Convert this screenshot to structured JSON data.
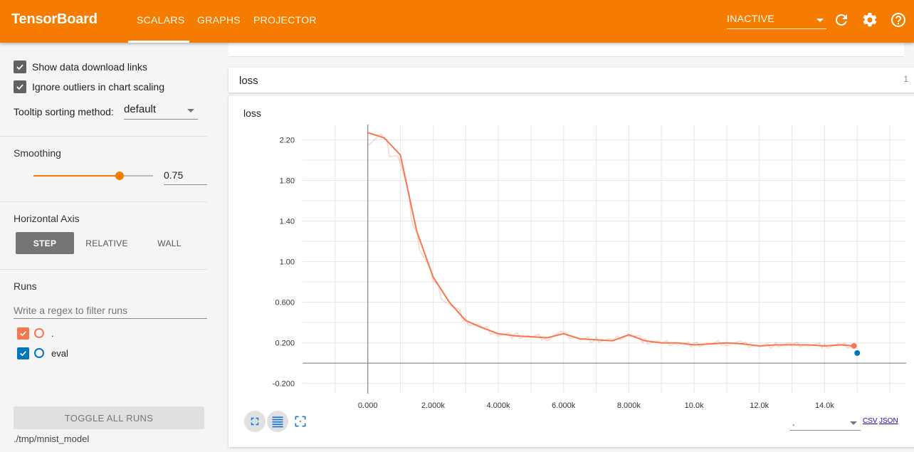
{
  "app": {
    "title": "TensorBoard"
  },
  "tabs": [
    {
      "label": "SCALARS",
      "active": true
    },
    {
      "label": "GRAPHS",
      "active": false
    },
    {
      "label": "PROJECTOR",
      "active": false
    }
  ],
  "header": {
    "dashboard_select": "INACTIVE",
    "icons": [
      "refresh-icon",
      "settings-icon",
      "help-icon"
    ]
  },
  "sidebar": {
    "show_download_links": {
      "label": "Show data download links",
      "checked": true
    },
    "ignore_outliers": {
      "label": "Ignore outliers in chart scaling",
      "checked": true
    },
    "tooltip_sorting": {
      "label": "Tooltip sorting method:",
      "value": "default"
    },
    "smoothing": {
      "title": "Smoothing",
      "value": "0.75",
      "fraction": 0.75
    },
    "horizontal_axis": {
      "title": "Horizontal Axis",
      "options": [
        "STEP",
        "RELATIVE",
        "WALL"
      ],
      "selected": "STEP"
    },
    "runs": {
      "title": "Runs",
      "filter_placeholder": "Write a regex to filter runs",
      "items": [
        {
          "name": ".",
          "checked": true,
          "color": "#f4774f"
        },
        {
          "name": "eval",
          "checked": true,
          "color": "#0077bb"
        }
      ]
    },
    "toggle_all_label": "TOGGLE ALL RUNS",
    "logdir": "./tmp/mnist_model"
  },
  "main": {
    "group": {
      "name": "loss",
      "count": "1"
    },
    "chart": {
      "title": "loss",
      "csv_label": "CSV",
      "json_label": "JSON"
    }
  },
  "chart_data": {
    "type": "line",
    "title": "loss",
    "xlabel": "",
    "ylabel": "",
    "x_tick_labels": [
      "0.000",
      "2.000k",
      "4.000k",
      "6.000k",
      "8.000k",
      "10.0k",
      "12.0k",
      "14.0k"
    ],
    "y_tick_labels": [
      "2.20",
      "1.80",
      "1.40",
      "1.00",
      "0.600",
      "0.200",
      "-0.200"
    ],
    "xlim": [
      -2000,
      16500
    ],
    "ylim": [
      -0.3,
      2.35
    ],
    "grid": true,
    "series": [
      {
        "name": ".",
        "color": "#f4774f",
        "x": [
          0,
          500,
          1000,
          1500,
          2000,
          2500,
          3000,
          3500,
          4000,
          4500,
          5000,
          5500,
          6000,
          6500,
          7000,
          7500,
          8000,
          8500,
          9000,
          9500,
          10000,
          10500,
          11000,
          11500,
          12000,
          12500,
          13000,
          13500,
          14000,
          14500,
          14900
        ],
        "values": [
          2.27,
          2.22,
          2.05,
          1.3,
          0.85,
          0.6,
          0.42,
          0.35,
          0.29,
          0.27,
          0.26,
          0.25,
          0.29,
          0.24,
          0.23,
          0.22,
          0.28,
          0.22,
          0.2,
          0.2,
          0.18,
          0.19,
          0.2,
          0.19,
          0.17,
          0.18,
          0.18,
          0.18,
          0.17,
          0.18,
          0.17
        ]
      },
      {
        "name": "eval",
        "color": "#0077bb",
        "x": [
          15000
        ],
        "values": [
          0.1
        ]
      }
    ]
  }
}
